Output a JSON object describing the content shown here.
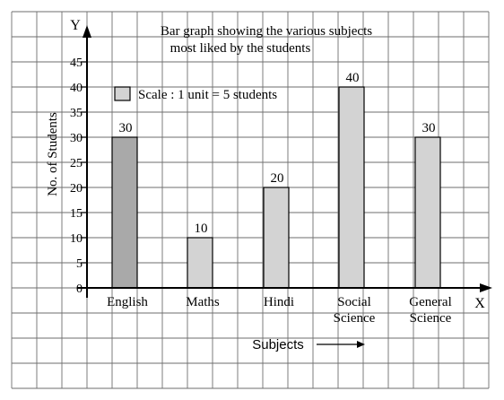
{
  "chart_data": {
    "type": "bar",
    "title_line1": "Bar graph showing the various subjects",
    "title_line2": "most liked by the students",
    "categories": [
      [
        "English"
      ],
      [
        "Maths"
      ],
      [
        "Hindi"
      ],
      [
        "Social",
        "Science"
      ],
      [
        "General",
        "Science"
      ]
    ],
    "values": [
      30,
      10,
      20,
      40,
      30
    ],
    "ylabel": "No. of Students",
    "xlabel": "Subjects",
    "x_axis_letter": "X",
    "y_axis_letter": "Y",
    "ylim": [
      0,
      45
    ],
    "yticks": [
      0,
      5,
      10,
      15,
      20,
      25,
      30,
      35,
      40,
      45
    ],
    "legend": "Scale : 1 unit = 5 students",
    "grid": true,
    "colors": {
      "highlight_bar": "#a9a9a9",
      "bar": "#d3d3d3",
      "grid": "#6e6e6e"
    },
    "highlight_index": 0
  }
}
